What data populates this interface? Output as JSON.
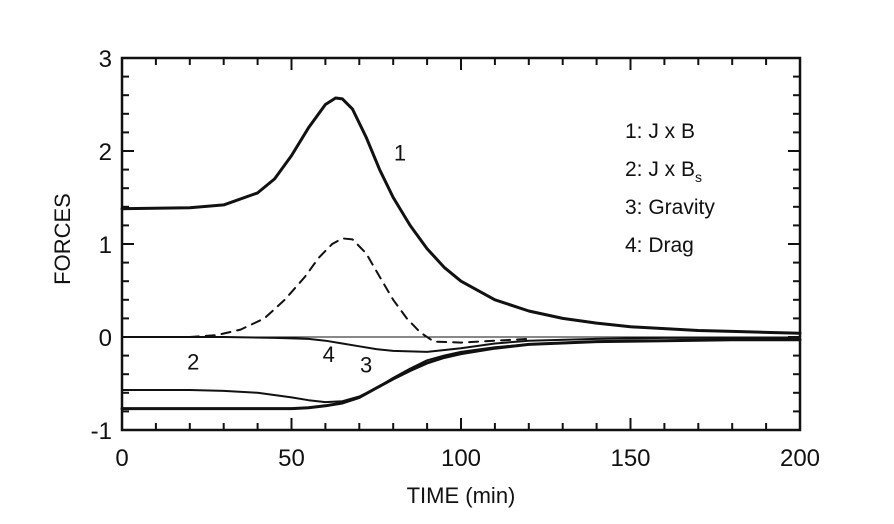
{
  "chart_data": {
    "type": "line",
    "xlabel": "TIME (min)",
    "ylabel": "FORCES",
    "xlim": [
      0,
      200
    ],
    "ylim": [
      -1,
      3
    ],
    "x_ticks": [
      0,
      50,
      100,
      150,
      200
    ],
    "y_ticks": [
      -1,
      0,
      1,
      2,
      3
    ],
    "grid": false,
    "zero_line": true,
    "legend": {
      "placement": "top-right",
      "entries": [
        {
          "key": "1",
          "text": "J x B"
        },
        {
          "key": "2",
          "text": "J x B",
          "subscript": "s"
        },
        {
          "key": "3",
          "text": "Gravity"
        },
        {
          "key": "4",
          "text": "Drag"
        }
      ]
    },
    "series": [
      {
        "id": "1",
        "style": "solid-thick",
        "x": [
          0,
          20,
          30,
          40,
          45,
          50,
          55,
          60,
          63,
          65,
          68,
          72,
          76,
          80,
          85,
          90,
          95,
          100,
          110,
          120,
          130,
          140,
          150,
          160,
          170,
          180,
          190,
          200
        ],
        "y": [
          1.38,
          1.39,
          1.42,
          1.55,
          1.7,
          1.95,
          2.25,
          2.5,
          2.57,
          2.56,
          2.45,
          2.15,
          1.8,
          1.5,
          1.2,
          0.95,
          0.75,
          0.6,
          0.4,
          0.28,
          0.2,
          0.15,
          0.11,
          0.09,
          0.07,
          0.06,
          0.05,
          0.04
        ]
      },
      {
        "id": "2",
        "style": "dashed",
        "x": [
          20,
          28,
          35,
          42,
          48,
          54,
          58,
          62,
          65,
          68,
          72,
          76,
          80,
          84,
          88,
          92,
          100,
          110,
          120
        ],
        "y": [
          0.0,
          0.02,
          0.08,
          0.2,
          0.4,
          0.65,
          0.85,
          1.0,
          1.06,
          1.05,
          0.9,
          0.65,
          0.4,
          0.2,
          0.05,
          -0.05,
          -0.06,
          -0.04,
          -0.02
        ]
      },
      {
        "id": "3",
        "style": "solid-thick",
        "x": [
          0,
          20,
          40,
          50,
          55,
          60,
          65,
          70,
          75,
          80,
          85,
          90,
          95,
          100,
          110,
          120,
          140,
          160,
          180,
          200
        ],
        "y": [
          -0.77,
          -0.77,
          -0.77,
          -0.77,
          -0.76,
          -0.74,
          -0.71,
          -0.65,
          -0.55,
          -0.45,
          -0.36,
          -0.28,
          -0.22,
          -0.18,
          -0.12,
          -0.08,
          -0.05,
          -0.04,
          -0.03,
          -0.03
        ]
      },
      {
        "id": "4",
        "style": "solid",
        "x": [
          0,
          20,
          30,
          40,
          50,
          55,
          60,
          65,
          70,
          75,
          80,
          85,
          90,
          95,
          100,
          110,
          120,
          140,
          160,
          180,
          200
        ],
        "y": [
          -0.57,
          -0.57,
          -0.58,
          -0.6,
          -0.65,
          -0.68,
          -0.7,
          -0.69,
          -0.64,
          -0.55,
          -0.44,
          -0.34,
          -0.25,
          -0.2,
          -0.16,
          -0.11,
          -0.08,
          -0.05,
          -0.04,
          -0.03,
          -0.03
        ]
      },
      {
        "id": "4-upper",
        "style": "solid",
        "x": [
          0,
          30,
          45,
          55,
          60,
          65,
          70,
          75,
          80,
          90,
          100,
          110,
          120,
          140,
          160,
          180,
          200
        ],
        "y": [
          0.0,
          0.0,
          -0.01,
          -0.02,
          -0.04,
          -0.07,
          -0.1,
          -0.13,
          -0.15,
          -0.16,
          -0.12,
          -0.07,
          -0.04,
          -0.02,
          -0.01,
          -0.01,
          -0.01
        ]
      }
    ],
    "curve_labels": [
      {
        "text": "1",
        "x": 82,
        "y": 1.9
      },
      {
        "text": "2",
        "x": 21,
        "y": -0.35
      },
      {
        "text": "4",
        "x": 61,
        "y": -0.27
      },
      {
        "text": "3",
        "x": 72,
        "y": -0.38
      }
    ]
  }
}
